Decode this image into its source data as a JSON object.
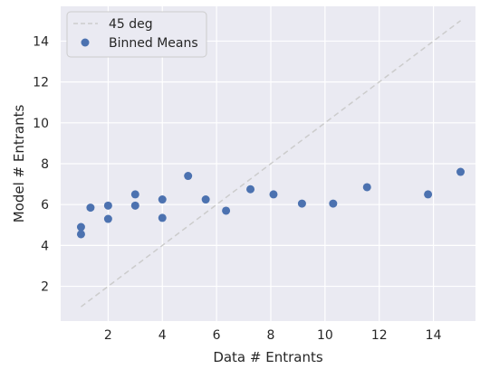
{
  "chart_data": {
    "type": "scatter",
    "xlabel": "Data # Entrants",
    "ylabel": "Model # Entrants",
    "xlim": [
      0.25,
      15.55
    ],
    "ylim": [
      0.3,
      15.7
    ],
    "xticks": [
      2,
      4,
      6,
      8,
      10,
      12,
      14
    ],
    "yticks": [
      2,
      4,
      6,
      8,
      10,
      12,
      14
    ],
    "grid": true,
    "legend_position": "top-left",
    "series": [
      {
        "name": "45 deg",
        "kind": "line",
        "color": "#cccccc",
        "points": [
          [
            1,
            1
          ],
          [
            15,
            15
          ]
        ]
      },
      {
        "name": "Binned Means",
        "kind": "scatter",
        "color": "#4c72b0",
        "points": [
          [
            1.0,
            4.9
          ],
          [
            1.0,
            4.55
          ],
          [
            1.35,
            5.85
          ],
          [
            2.0,
            5.95
          ],
          [
            2.0,
            5.3
          ],
          [
            3.0,
            6.5
          ],
          [
            3.0,
            5.95
          ],
          [
            4.0,
            6.25
          ],
          [
            4.0,
            5.35
          ],
          [
            4.95,
            7.4
          ],
          [
            5.6,
            6.25
          ],
          [
            6.35,
            5.7
          ],
          [
            7.25,
            6.75
          ],
          [
            8.1,
            6.5
          ],
          [
            9.15,
            6.05
          ],
          [
            10.3,
            6.05
          ],
          [
            11.55,
            6.85
          ],
          [
            13.8,
            6.5
          ],
          [
            15.0,
            7.6
          ]
        ]
      }
    ]
  }
}
